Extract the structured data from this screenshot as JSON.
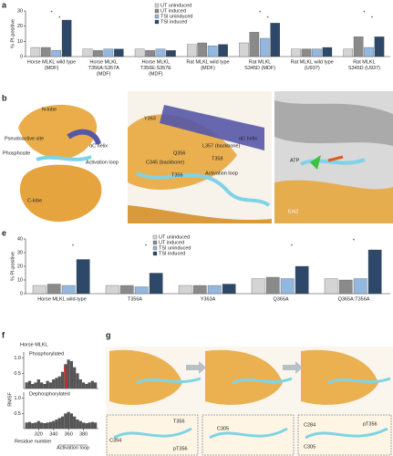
{
  "panel_letters": [
    "a",
    "b",
    "c",
    "d",
    "e",
    "f",
    "g"
  ],
  "chart_data": [
    {
      "type": "grouped-bar",
      "y_label": "% PI-positive",
      "categories": [
        [
          "Horse MLKL wild type",
          "(MDF)"
        ],
        [
          "Horse MLKL",
          "T356A:S357A",
          "(MDF)"
        ],
        [
          "Horse MLKL",
          "T356E:S357E",
          "(MDF)"
        ],
        [
          "Rat MLKL wild type",
          "(MDF)"
        ],
        [
          "Rat MLKL",
          "S345D (MDF)"
        ],
        [
          "Rat MLKL wild type",
          "(U937)"
        ],
        [
          "Rat MLKL",
          "S345D (U937)"
        ]
      ],
      "series": [
        {
          "name": "UT uninduced",
          "color": "#d4d4d4",
          "values": [
            6,
            5,
            5,
            8,
            9,
            5,
            5
          ]
        },
        {
          "name": "UT induced",
          "color": "#8a8a8a",
          "values": [
            6,
            4,
            4,
            9,
            16,
            5,
            13
          ]
        },
        {
          "name": "TSI uninduced",
          "color": "#93b7de",
          "values": [
            4,
            5,
            5,
            7,
            12,
            5,
            6
          ]
        },
        {
          "name": "TSI induced",
          "color": "#2d4868",
          "values": [
            24,
            5,
            4,
            8,
            22,
            6,
            13
          ]
        }
      ],
      "ylim": [
        0,
        30
      ],
      "yticks": [
        0,
        10,
        20,
        30
      ],
      "annotations": [
        "*",
        "*",
        "*",
        "*",
        "*",
        "*"
      ]
    },
    {
      "type": "grouped-bar",
      "y_label": "% PI-positive",
      "categories": [
        [
          "Horse MLKL wild-type"
        ],
        [
          "T356A"
        ],
        [
          "Y363A"
        ],
        [
          "Q365A"
        ],
        [
          "Q365A:T356A"
        ]
      ],
      "series": [
        {
          "name": "UT uninduced",
          "color": "#d4d4d4",
          "values": [
            6,
            6,
            6,
            11,
            11
          ]
        },
        {
          "name": "UT induced",
          "color": "#8a8a8a",
          "values": [
            7,
            6,
            6,
            12,
            10
          ]
        },
        {
          "name": "TSI uninduced",
          "color": "#93b7de",
          "values": [
            6,
            5,
            6,
            11,
            11
          ]
        },
        {
          "name": "TSI induced",
          "color": "#2d4868",
          "values": [
            25,
            15,
            7,
            20,
            32
          ]
        }
      ],
      "ylim": [
        0,
        40
      ],
      "yticks": [
        0,
        10,
        20,
        30,
        40
      ],
      "annotations": [
        "*",
        "*",
        "*",
        "*"
      ]
    },
    {
      "type": "histogram",
      "title": "Phosphorylated",
      "y_label": "RMSF",
      "color": "#555555",
      "x": [
        304,
        308,
        312,
        316,
        320,
        324,
        328,
        332,
        336,
        340,
        344,
        348,
        352,
        356,
        360,
        364,
        368,
        372,
        376,
        380,
        384,
        388,
        392,
        396
      ],
      "values": [
        0.2,
        0.25,
        0.15,
        0.2,
        0.3,
        0.2,
        0.15,
        0.25,
        0.2,
        0.3,
        0.35,
        0.4,
        0.55,
        0.8,
        0.95,
        0.9,
        0.7,
        0.5,
        0.3,
        0.2,
        0.15,
        0.2,
        0.25,
        0.2
      ],
      "xlim": [
        300,
        400
      ],
      "ylim": [
        0,
        1.2
      ],
      "yticks": [
        0.5,
        {
          "value": 1,
          "label": "1.0"
        }
      ]
    },
    {
      "type": "histogram",
      "title": "Dephosphorylated",
      "color": "#555555",
      "x": [
        304,
        308,
        312,
        316,
        320,
        324,
        328,
        332,
        336,
        340,
        344,
        348,
        352,
        356,
        360,
        364,
        368,
        372,
        376,
        380,
        384,
        388,
        392,
        396
      ],
      "values": [
        0.2,
        0.22,
        0.18,
        0.2,
        0.25,
        0.2,
        0.18,
        0.2,
        0.22,
        0.25,
        0.3,
        0.35,
        0.4,
        0.5,
        0.55,
        0.5,
        0.4,
        0.3,
        0.25,
        0.2,
        0.18,
        0.2,
        0.22,
        0.2
      ],
      "xlim": [
        300,
        400
      ],
      "ylim": [
        0,
        1.2
      ],
      "yticks": [
        0.5,
        {
          "value": 1,
          "label": "1.0"
        }
      ],
      "xticks": [
        320,
        340,
        360,
        380
      ],
      "x_label": "Residue number",
      "annotation": "Activation loop"
    }
  ],
  "f_title": "Horse MLKL",
  "structure_b": [
    "N-lobe",
    "Pseudoactive site",
    "Phosphosite",
    "αC helix",
    "Activation loop",
    "C-lobe"
  ],
  "structure_c": [
    "αC helix",
    "Y363",
    "L357 (backbone)",
    "C345 (backbone)",
    "Q356",
    "T356",
    "T358",
    "Activation loop"
  ],
  "structure_d": [
    "ATP",
    "Erk2"
  ],
  "structure_g": [
    "T356",
    "C394",
    "pT356",
    "C305",
    "C284",
    "pT356",
    "C305"
  ]
}
